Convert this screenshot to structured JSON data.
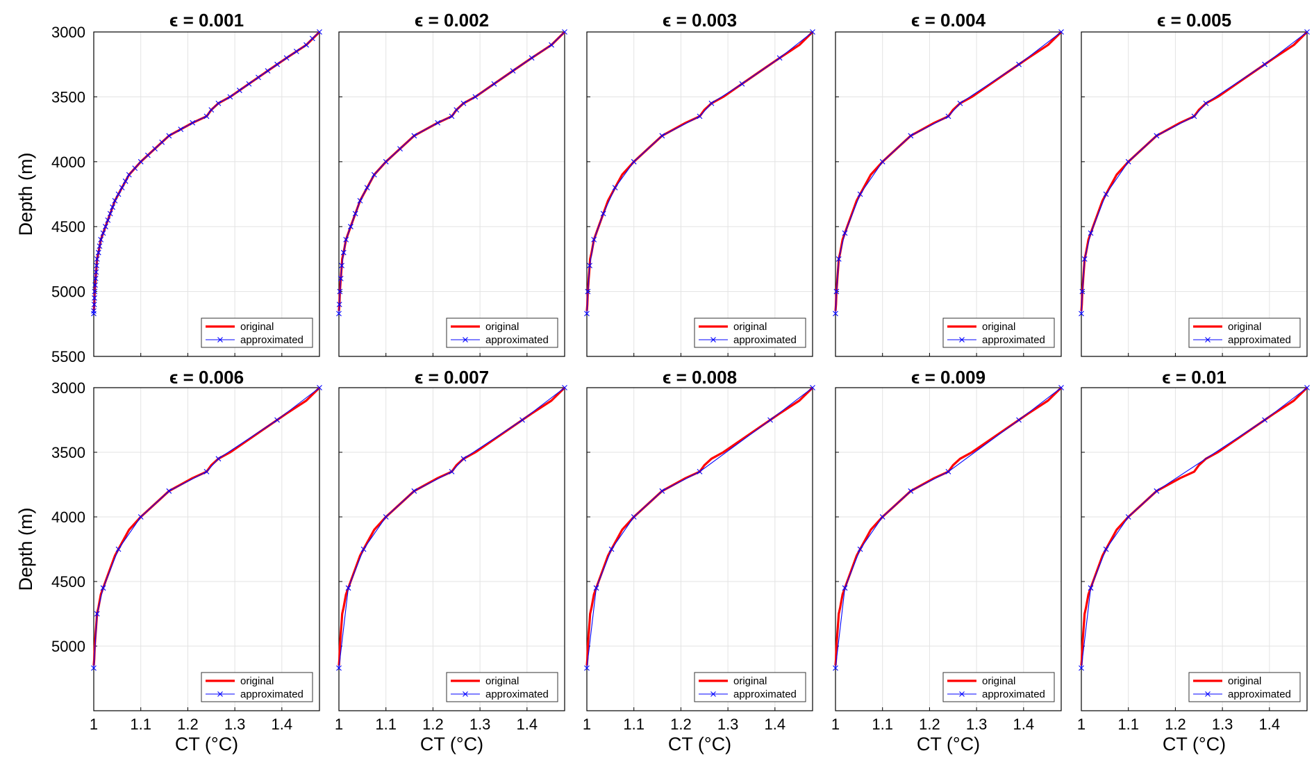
{
  "colors": {
    "original": "#ff0000",
    "approximated": "#0000ff",
    "grid": "#e3e3e3",
    "axes": "#000000"
  },
  "axes": {
    "xlabel": "CT (°C)",
    "ylabel": "Depth (m)",
    "xlim": [
      1.0,
      1.48
    ],
    "ylim_top": [
      3000,
      5500
    ],
    "ylim_bottom": [
      3000,
      5500
    ],
    "xticks": [
      1,
      1.1,
      1.2,
      1.3,
      1.4
    ],
    "xtick_labels": [
      "1",
      "1.1",
      "1.2",
      "1.3",
      "1.4"
    ],
    "yticks_top": [
      3000,
      3500,
      4000,
      4500,
      5000,
      5500
    ],
    "ytick_labels_top": [
      "3000",
      "3500",
      "4000",
      "4500",
      "5000",
      "5500"
    ],
    "yticks_bottom": [
      3000,
      3500,
      4000,
      4500,
      5000,
      5500
    ],
    "ytick_labels_bottom": [
      "3000",
      "3500",
      "4000",
      "4500",
      "5000",
      ""
    ],
    "y_reversed": true,
    "grid": true
  },
  "legend": {
    "original": "original",
    "approximated": "approximated",
    "placement": "bottom-right"
  },
  "chart_data": [
    {
      "type": "line",
      "title": "ϵ = 0.001",
      "series": [
        {
          "name": "original",
          "depth": [
            3000,
            3100,
            3200,
            3300,
            3400,
            3500,
            3550,
            3600,
            3650,
            3700,
            3800,
            3900,
            4000,
            4100,
            4200,
            4300,
            4400,
            4500,
            4600,
            4700,
            4750,
            4800,
            4900,
            5000,
            5100,
            5150
          ],
          "ct": [
            1.48,
            1.452,
            1.41,
            1.37,
            1.33,
            1.29,
            1.265,
            1.25,
            1.24,
            1.21,
            1.16,
            1.13,
            1.1,
            1.075,
            1.06,
            1.045,
            1.035,
            1.025,
            1.015,
            1.01,
            1.007,
            1.006,
            1.004,
            1.002,
            1.001,
            1.0
          ]
        },
        {
          "name": "approximated",
          "depth": [
            3000,
            3050,
            3100,
            3150,
            3200,
            3250,
            3300,
            3350,
            3400,
            3450,
            3500,
            3550,
            3600,
            3650,
            3700,
            3750,
            3800,
            3850,
            3900,
            3950,
            4000,
            4050,
            4100,
            4150,
            4200,
            4250,
            4300,
            4350,
            4400,
            4450,
            4500,
            4550,
            4600,
            4650,
            4700,
            4750,
            4800,
            4850,
            4900,
            4950,
            5000,
            5050,
            5100,
            5150,
            5170
          ],
          "ct": [
            1.48,
            1.465,
            1.452,
            1.431,
            1.41,
            1.39,
            1.37,
            1.35,
            1.33,
            1.31,
            1.29,
            1.265,
            1.25,
            1.24,
            1.21,
            1.185,
            1.16,
            1.145,
            1.13,
            1.115,
            1.1,
            1.0875,
            1.075,
            1.0675,
            1.06,
            1.0525,
            1.045,
            1.04,
            1.035,
            1.03,
            1.025,
            1.02,
            1.015,
            1.0125,
            1.01,
            1.007,
            1.006,
            1.005,
            1.004,
            1.003,
            1.002,
            1.0015,
            1.001,
            1.0,
            1.0
          ]
        }
      ]
    },
    {
      "type": "line",
      "title": "ϵ = 0.002",
      "series": [
        {
          "name": "original",
          "depth": [
            3000,
            3100,
            3200,
            3300,
            3400,
            3500,
            3550,
            3600,
            3650,
            3700,
            3800,
            3900,
            4000,
            4100,
            4200,
            4300,
            4400,
            4500,
            4600,
            4700,
            4750,
            4800,
            4900,
            5000,
            5100,
            5150
          ],
          "ct": [
            1.48,
            1.452,
            1.41,
            1.37,
            1.33,
            1.29,
            1.265,
            1.25,
            1.24,
            1.21,
            1.16,
            1.13,
            1.1,
            1.075,
            1.06,
            1.045,
            1.035,
            1.025,
            1.015,
            1.01,
            1.007,
            1.006,
            1.004,
            1.002,
            1.001,
            1.0
          ]
        },
        {
          "name": "approximated",
          "depth": [
            3000,
            3100,
            3200,
            3300,
            3400,
            3500,
            3550,
            3600,
            3650,
            3700,
            3800,
            3900,
            4000,
            4100,
            4200,
            4300,
            4400,
            4500,
            4600,
            4700,
            4800,
            4900,
            5000,
            5100,
            5170
          ],
          "ct": [
            1.48,
            1.452,
            1.41,
            1.37,
            1.33,
            1.29,
            1.265,
            1.25,
            1.24,
            1.21,
            1.16,
            1.13,
            1.1,
            1.075,
            1.06,
            1.045,
            1.035,
            1.025,
            1.015,
            1.01,
            1.006,
            1.004,
            1.002,
            1.001,
            1.0
          ]
        }
      ]
    },
    {
      "type": "line",
      "title": "ϵ = 0.003",
      "series": [
        {
          "name": "original",
          "depth": [
            3000,
            3100,
            3200,
            3300,
            3400,
            3500,
            3550,
            3600,
            3650,
            3700,
            3800,
            3900,
            4000,
            4100,
            4200,
            4300,
            4400,
            4500,
            4600,
            4700,
            4750,
            4800,
            4900,
            5000,
            5100,
            5150
          ],
          "ct": [
            1.48,
            1.452,
            1.41,
            1.37,
            1.33,
            1.29,
            1.265,
            1.25,
            1.24,
            1.21,
            1.16,
            1.13,
            1.1,
            1.075,
            1.06,
            1.045,
            1.035,
            1.025,
            1.015,
            1.01,
            1.007,
            1.006,
            1.004,
            1.002,
            1.001,
            1.0
          ]
        },
        {
          "name": "approximated",
          "depth": [
            3000,
            3200,
            3400,
            3550,
            3650,
            3800,
            4000,
            4200,
            4400,
            4600,
            4800,
            5000,
            5170
          ],
          "ct": [
            1.48,
            1.41,
            1.33,
            1.265,
            1.24,
            1.16,
            1.1,
            1.06,
            1.035,
            1.015,
            1.006,
            1.002,
            1.0
          ]
        }
      ]
    },
    {
      "type": "line",
      "title": "ϵ = 0.004",
      "series": [
        {
          "name": "original",
          "depth": [
            3000,
            3100,
            3200,
            3300,
            3400,
            3500,
            3550,
            3600,
            3650,
            3700,
            3800,
            3900,
            4000,
            4100,
            4200,
            4300,
            4400,
            4500,
            4600,
            4700,
            4750,
            4800,
            4900,
            5000,
            5100,
            5150
          ],
          "ct": [
            1.48,
            1.452,
            1.41,
            1.37,
            1.33,
            1.29,
            1.265,
            1.25,
            1.24,
            1.21,
            1.16,
            1.13,
            1.1,
            1.075,
            1.06,
            1.045,
            1.035,
            1.025,
            1.015,
            1.01,
            1.007,
            1.006,
            1.004,
            1.002,
            1.001,
            1.0
          ]
        },
        {
          "name": "approximated",
          "depth": [
            3000,
            3250,
            3550,
            3650,
            3800,
            4000,
            4250,
            4550,
            4750,
            5000,
            5170
          ],
          "ct": [
            1.48,
            1.39,
            1.265,
            1.24,
            1.16,
            1.1,
            1.0525,
            1.02,
            1.007,
            1.002,
            1.0
          ]
        }
      ]
    },
    {
      "type": "line",
      "title": "ϵ = 0.005",
      "series": [
        {
          "name": "original",
          "depth": [
            3000,
            3100,
            3200,
            3300,
            3400,
            3500,
            3550,
            3600,
            3650,
            3700,
            3800,
            3900,
            4000,
            4100,
            4200,
            4300,
            4400,
            4500,
            4600,
            4700,
            4750,
            4800,
            4900,
            5000,
            5100,
            5150
          ],
          "ct": [
            1.48,
            1.452,
            1.41,
            1.37,
            1.33,
            1.29,
            1.265,
            1.25,
            1.24,
            1.21,
            1.16,
            1.13,
            1.1,
            1.075,
            1.06,
            1.045,
            1.035,
            1.025,
            1.015,
            1.01,
            1.007,
            1.006,
            1.004,
            1.002,
            1.001,
            1.0
          ]
        },
        {
          "name": "approximated",
          "depth": [
            3000,
            3250,
            3550,
            3650,
            3800,
            4000,
            4250,
            4550,
            4750,
            5000,
            5170
          ],
          "ct": [
            1.48,
            1.39,
            1.265,
            1.24,
            1.16,
            1.1,
            1.0525,
            1.02,
            1.007,
            1.002,
            1.0
          ]
        }
      ]
    },
    {
      "type": "line",
      "title": "ϵ = 0.006",
      "series": [
        {
          "name": "original",
          "depth": [
            3000,
            3100,
            3200,
            3300,
            3400,
            3500,
            3550,
            3600,
            3650,
            3700,
            3800,
            3900,
            4000,
            4100,
            4200,
            4300,
            4400,
            4500,
            4600,
            4700,
            4750,
            4800,
            4900,
            5000,
            5100,
            5150
          ],
          "ct": [
            1.48,
            1.452,
            1.41,
            1.37,
            1.33,
            1.29,
            1.265,
            1.25,
            1.24,
            1.21,
            1.16,
            1.13,
            1.1,
            1.075,
            1.06,
            1.045,
            1.035,
            1.025,
            1.015,
            1.01,
            1.007,
            1.006,
            1.004,
            1.002,
            1.001,
            1.0
          ]
        },
        {
          "name": "approximated",
          "depth": [
            3000,
            3250,
            3550,
            3650,
            3800,
            4000,
            4250,
            4550,
            4750,
            5170
          ],
          "ct": [
            1.48,
            1.39,
            1.265,
            1.24,
            1.16,
            1.1,
            1.0525,
            1.02,
            1.007,
            1.0
          ]
        }
      ]
    },
    {
      "type": "line",
      "title": "ϵ = 0.007",
      "series": [
        {
          "name": "original",
          "depth": [
            3000,
            3100,
            3200,
            3300,
            3400,
            3500,
            3550,
            3600,
            3650,
            3700,
            3800,
            3900,
            4000,
            4100,
            4200,
            4300,
            4400,
            4500,
            4600,
            4700,
            4750,
            4800,
            4900,
            5000,
            5100,
            5150
          ],
          "ct": [
            1.48,
            1.452,
            1.41,
            1.37,
            1.33,
            1.29,
            1.265,
            1.25,
            1.24,
            1.21,
            1.16,
            1.13,
            1.1,
            1.075,
            1.06,
            1.045,
            1.035,
            1.025,
            1.015,
            1.01,
            1.007,
            1.006,
            1.004,
            1.002,
            1.001,
            1.0
          ]
        },
        {
          "name": "approximated",
          "depth": [
            3000,
            3250,
            3550,
            3650,
            3800,
            4000,
            4250,
            4550,
            5170
          ],
          "ct": [
            1.48,
            1.39,
            1.265,
            1.24,
            1.16,
            1.1,
            1.0525,
            1.02,
            1.0
          ]
        }
      ]
    },
    {
      "type": "line",
      "title": "ϵ = 0.008",
      "series": [
        {
          "name": "original",
          "depth": [
            3000,
            3100,
            3200,
            3300,
            3400,
            3500,
            3550,
            3600,
            3650,
            3700,
            3800,
            3900,
            4000,
            4100,
            4200,
            4300,
            4400,
            4500,
            4600,
            4700,
            4750,
            4800,
            4900,
            5000,
            5100,
            5150
          ],
          "ct": [
            1.48,
            1.452,
            1.41,
            1.37,
            1.33,
            1.29,
            1.265,
            1.25,
            1.24,
            1.21,
            1.16,
            1.13,
            1.1,
            1.075,
            1.06,
            1.045,
            1.035,
            1.025,
            1.015,
            1.01,
            1.007,
            1.006,
            1.004,
            1.002,
            1.001,
            1.0
          ]
        },
        {
          "name": "approximated",
          "depth": [
            3000,
            3250,
            3650,
            3800,
            4000,
            4250,
            4550,
            5170
          ],
          "ct": [
            1.48,
            1.39,
            1.24,
            1.16,
            1.1,
            1.0525,
            1.02,
            1.0
          ]
        }
      ]
    },
    {
      "type": "line",
      "title": "ϵ = 0.009",
      "series": [
        {
          "name": "original",
          "depth": [
            3000,
            3100,
            3200,
            3300,
            3400,
            3500,
            3550,
            3600,
            3650,
            3700,
            3800,
            3900,
            4000,
            4100,
            4200,
            4300,
            4400,
            4500,
            4600,
            4700,
            4750,
            4800,
            4900,
            5000,
            5100,
            5150
          ],
          "ct": [
            1.48,
            1.452,
            1.41,
            1.37,
            1.33,
            1.29,
            1.265,
            1.25,
            1.24,
            1.21,
            1.16,
            1.13,
            1.1,
            1.075,
            1.06,
            1.045,
            1.035,
            1.025,
            1.015,
            1.01,
            1.007,
            1.006,
            1.004,
            1.002,
            1.001,
            1.0
          ]
        },
        {
          "name": "approximated",
          "depth": [
            3000,
            3250,
            3650,
            3800,
            4000,
            4250,
            4550,
            5170
          ],
          "ct": [
            1.48,
            1.39,
            1.24,
            1.16,
            1.1,
            1.0525,
            1.02,
            1.0
          ]
        }
      ]
    },
    {
      "type": "line",
      "title": "ϵ = 0.01",
      "series": [
        {
          "name": "original",
          "depth": [
            3000,
            3100,
            3200,
            3300,
            3400,
            3500,
            3550,
            3600,
            3650,
            3700,
            3800,
            3900,
            4000,
            4100,
            4200,
            4300,
            4400,
            4500,
            4600,
            4700,
            4750,
            4800,
            4900,
            5000,
            5100,
            5150
          ],
          "ct": [
            1.48,
            1.452,
            1.41,
            1.37,
            1.33,
            1.29,
            1.265,
            1.25,
            1.24,
            1.21,
            1.16,
            1.13,
            1.1,
            1.075,
            1.06,
            1.045,
            1.035,
            1.025,
            1.015,
            1.01,
            1.007,
            1.006,
            1.004,
            1.002,
            1.001,
            1.0
          ]
        },
        {
          "name": "approximated",
          "depth": [
            3000,
            3250,
            3800,
            4000,
            4250,
            4550,
            5170
          ],
          "ct": [
            1.48,
            1.39,
            1.16,
            1.1,
            1.0525,
            1.02,
            1.0
          ]
        }
      ]
    }
  ]
}
